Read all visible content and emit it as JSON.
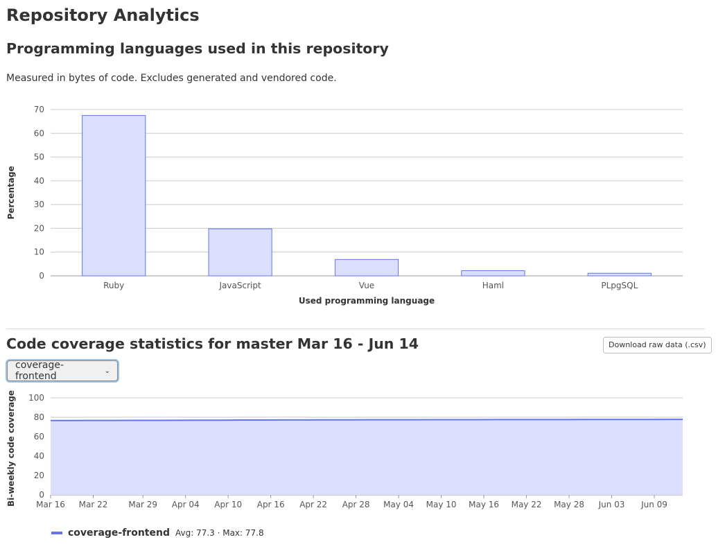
{
  "page": {
    "title": "Repository Analytics"
  },
  "languages": {
    "title": "Programming languages used in this repository",
    "description": "Measured in bytes of code. Excludes generated and vendored code."
  },
  "coverage": {
    "title": "Code coverage statistics for master Mar 16 - Jun 14",
    "download_label": "Download raw data (.csv)",
    "selected_job": "coverage-frontend",
    "legend": {
      "name": "coverage-frontend",
      "stats": "Avg: 77.3 · Max: 77.8"
    }
  },
  "colors": {
    "bar_fill": "#dbdefc",
    "bar_stroke": "#6175ee",
    "area_fill": "#dbdefc",
    "line": "#6175ee",
    "grid": "#c9c9c9"
  },
  "chart_data": [
    {
      "id": "languages",
      "type": "bar",
      "categories": [
        "Ruby",
        "JavaScript",
        "Vue",
        "Haml",
        "PLpgSQL"
      ],
      "values": [
        67.5,
        19.8,
        6.9,
        2.2,
        1.1
      ],
      "title": "",
      "xlabel": "Used programming language",
      "ylabel": "Percentage",
      "ylim": [
        0,
        70
      ],
      "yticks": [
        0,
        10,
        20,
        30,
        40,
        50,
        60,
        70
      ],
      "grid": true
    },
    {
      "id": "coverage",
      "type": "area",
      "x_start": "Mar 16",
      "x_end": "Jun 14",
      "x_tick_labels": [
        "Mar 16",
        "Mar 22",
        "Mar 29",
        "Apr 04",
        "Apr 10",
        "Apr 16",
        "Apr 22",
        "Apr 28",
        "May 04",
        "May 10",
        "May 16",
        "May 22",
        "May 28",
        "Jun 03",
        "Jun 09"
      ],
      "x_tick_days": [
        0,
        6,
        13,
        19,
        25,
        31,
        37,
        43,
        49,
        55,
        61,
        67,
        73,
        79,
        85
      ],
      "x_range_days": [
        0,
        89
      ],
      "series": [
        {
          "name": "coverage-frontend",
          "days": [
            0,
            3,
            6,
            9,
            12,
            15,
            18,
            21,
            24,
            27,
            30,
            33,
            36,
            39,
            42,
            45,
            48,
            51,
            54,
            57,
            60,
            63,
            66,
            69,
            72,
            75,
            78,
            81,
            84,
            87,
            89
          ],
          "values": [
            76.6,
            76.6,
            76.7,
            76.7,
            76.8,
            76.8,
            76.9,
            77.0,
            77.0,
            77.1,
            77.1,
            77.2,
            77.2,
            77.3,
            77.3,
            77.4,
            77.4,
            77.4,
            77.5,
            77.5,
            77.5,
            77.6,
            77.6,
            77.6,
            77.6,
            77.7,
            77.7,
            77.7,
            77.7,
            77.8,
            77.8
          ]
        }
      ],
      "xlabel": "",
      "ylabel": "Bi-weekly code coverage",
      "ylim": [
        0,
        100
      ],
      "yticks": [
        0,
        20,
        40,
        60,
        80,
        100
      ],
      "grid": true
    }
  ]
}
